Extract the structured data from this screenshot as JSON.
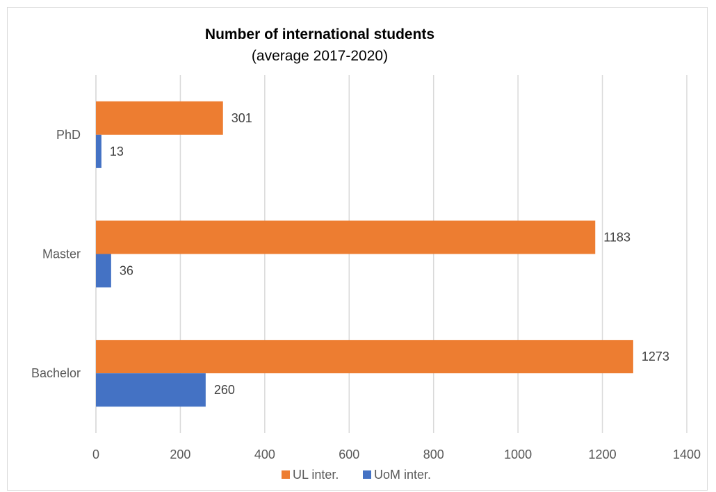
{
  "chart_data": {
    "type": "bar",
    "orientation": "horizontal",
    "title": "Number of international students",
    "subtitle": "(average 2017-2020)",
    "categories": [
      "PhD",
      "Master",
      "Bachelor"
    ],
    "series": [
      {
        "name": "UL inter.",
        "color": "#ED7D31",
        "values": [
          301,
          1183,
          1273
        ]
      },
      {
        "name": "UoM inter.",
        "color": "#4472C4",
        "values": [
          13,
          36,
          260
        ]
      }
    ],
    "xlim": [
      0,
      1400
    ],
    "x_ticks": [
      0,
      200,
      400,
      600,
      800,
      1000,
      1200,
      1400
    ],
    "grid": true,
    "legend_position": "bottom",
    "data_labels": true
  }
}
